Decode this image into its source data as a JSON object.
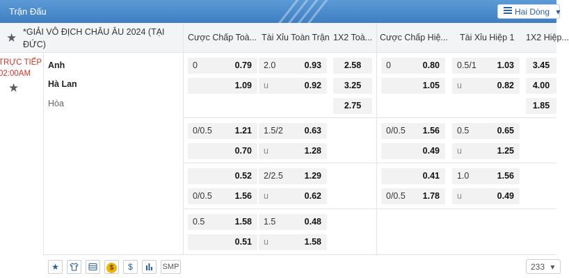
{
  "header": {
    "title": "Trận Đấu",
    "lines_select": "Hai Dòng",
    "hamburger_icon": "hamburger-icon",
    "chevron_icon": "chevron-down-icon"
  },
  "columns": {
    "league": "*GIẢI VÔ ĐỊCH CHÂU ÂU 2024 (TẠI ĐỨC)",
    "ft_handicap": "Cược Chấp Toà...",
    "ft_ou": "Tài Xỉu Toàn Trận",
    "ft_1x2": "1X2 Toà...",
    "h1_handicap": "Cược Chấp Hiệ...",
    "h1_ou": "Tài Xỉu Hiệp 1",
    "h1_1x2": "1X2 Hiệp..."
  },
  "match": {
    "status": "TRỰC TIẾP",
    "time": "02:00AM",
    "home": "Anh",
    "away": "Hà Lan",
    "draw": "Hòa"
  },
  "odds": [
    {
      "ft_hdp": {
        "home_line": "0",
        "home_odds": "0.79",
        "away_line": "",
        "away_odds": "1.09"
      },
      "ft_ou": {
        "line": "2.0",
        "over": "0.93",
        "under_label": "u",
        "under": "0.92"
      },
      "ft_1x2": {
        "home": "2.58",
        "away": "3.25",
        "draw": "2.75"
      },
      "h1_hdp": {
        "home_line": "0",
        "home_odds": "0.80",
        "away_line": "",
        "away_odds": "1.05"
      },
      "h1_ou": {
        "line": "0.5/1",
        "over": "1.03",
        "under_label": "u",
        "under": "0.82"
      },
      "h1_1x2": {
        "home": "3.45",
        "away": "4.00",
        "draw": "1.85"
      }
    },
    {
      "ft_hdp": {
        "home_line": "0/0.5",
        "home_odds": "1.21",
        "away_line": "",
        "away_odds": "0.70"
      },
      "ft_ou": {
        "line": "1.5/2",
        "over": "0.63",
        "under_label": "u",
        "under": "1.28"
      },
      "h1_hdp": {
        "home_line": "0/0.5",
        "home_odds": "1.56",
        "away_line": "",
        "away_odds": "0.49"
      },
      "h1_ou": {
        "line": "0.5",
        "over": "0.65",
        "under_label": "u",
        "under": "1.25"
      }
    },
    {
      "ft_hdp": {
        "home_line": "",
        "home_odds": "0.52",
        "away_line": "0/0.5",
        "away_odds": "1.56"
      },
      "ft_ou": {
        "line": "2/2.5",
        "over": "1.29",
        "under_label": "u",
        "under": "0.62"
      },
      "h1_hdp": {
        "home_line": "",
        "home_odds": "0.41",
        "away_line": "0/0.5",
        "away_odds": "1.78"
      },
      "h1_ou": {
        "line": "1.0",
        "over": "1.56",
        "under_label": "u",
        "under": "0.49"
      }
    },
    {
      "ft_hdp": {
        "home_line": "0.5",
        "home_odds": "1.58",
        "away_line": "",
        "away_odds": "0.51"
      },
      "ft_ou": {
        "line": "1.5",
        "over": "0.48",
        "under_label": "u",
        "under": "1.58"
      }
    }
  ],
  "toolbar": {
    "icons": [
      "star-icon",
      "jersey-icon",
      "card-icon",
      "coin-icon",
      "dollar-icon",
      "stats-icon"
    ],
    "dollar": "$",
    "coin": "$",
    "smp": "SMP",
    "count": "233"
  }
}
